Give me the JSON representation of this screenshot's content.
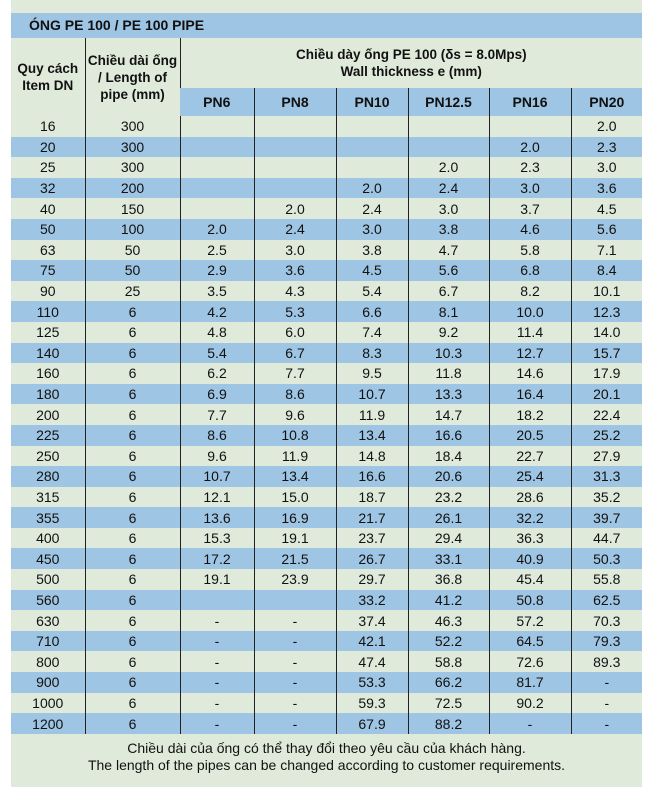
{
  "title": "ÓNG PE 100  / PE 100  PIPE",
  "headers": {
    "item_dn": "Quy cách Item DN",
    "length": "Chiều dài ống / Length of pipe (mm)",
    "thickness_vi": "Chiều dày ống PE 100 (δs = 8.0Mps)",
    "thickness_en": "Wall thickness e (mm)",
    "pn": [
      "PN6",
      "PN8",
      "PN10",
      "PN12.5",
      "PN16",
      "PN20"
    ]
  },
  "rows": [
    [
      "16",
      "300",
      "",
      "",
      "",
      "",
      "",
      "2.0"
    ],
    [
      "20",
      "300",
      "",
      "",
      "",
      "",
      "2.0",
      "2.3"
    ],
    [
      "25",
      "300",
      "",
      "",
      "",
      "2.0",
      "2.3",
      "3.0"
    ],
    [
      "32",
      "200",
      "",
      "",
      "2.0",
      "2.4",
      "3.0",
      "3.6"
    ],
    [
      "40",
      "150",
      "",
      "2.0",
      "2.4",
      "3.0",
      "3.7",
      "4.5"
    ],
    [
      "50",
      "100",
      "2.0",
      "2.4",
      "3.0",
      "3.8",
      "4.6",
      "5.6"
    ],
    [
      "63",
      "50",
      "2.5",
      "3.0",
      "3.8",
      "4.7",
      "5.8",
      "7.1"
    ],
    [
      "75",
      "50",
      "2.9",
      "3.6",
      "4.5",
      "5.6",
      "6.8",
      "8.4"
    ],
    [
      "90",
      "25",
      "3.5",
      "4.3",
      "5.4",
      "6.7",
      "8.2",
      "10.1"
    ],
    [
      "110",
      "6",
      "4.2",
      "5.3",
      "6.6",
      "8.1",
      "10.0",
      "12.3"
    ],
    [
      "125",
      "6",
      "4.8",
      "6.0",
      "7.4",
      "9.2",
      "11.4",
      "14.0"
    ],
    [
      "140",
      "6",
      "5.4",
      "6.7",
      "8.3",
      "10.3",
      "12.7",
      "15.7"
    ],
    [
      "160",
      "6",
      "6.2",
      "7.7",
      "9.5",
      "11.8",
      "14.6",
      "17.9"
    ],
    [
      "180",
      "6",
      "6.9",
      "8.6",
      "10.7",
      "13.3",
      "16.4",
      "20.1"
    ],
    [
      "200",
      "6",
      "7.7",
      "9.6",
      "11.9",
      "14.7",
      "18.2",
      "22.4"
    ],
    [
      "225",
      "6",
      "8.6",
      "10.8",
      "13.4",
      "16.6",
      "20.5",
      "25.2"
    ],
    [
      "250",
      "6",
      "9.6",
      "11.9",
      "14.8",
      "18.4",
      "22.7",
      "27.9"
    ],
    [
      "280",
      "6",
      "10.7",
      "13.4",
      "16.6",
      "20.6",
      "25.4",
      "31.3"
    ],
    [
      "315",
      "6",
      "12.1",
      "15.0",
      "18.7",
      "23.2",
      "28.6",
      "35.2"
    ],
    [
      "355",
      "6",
      "13.6",
      "16.9",
      "21.7",
      "26.1",
      "32.2",
      "39.7"
    ],
    [
      "400",
      "6",
      "15.3",
      "19.1",
      "23.7",
      "29.4",
      "36.3",
      "44.7"
    ],
    [
      "450",
      "6",
      "17.2",
      "21.5",
      "26.7",
      "33.1",
      "40.9",
      "50.3"
    ],
    [
      "500",
      "6",
      "19.1",
      "23.9",
      "29.7",
      "36.8",
      "45.4",
      "55.8"
    ],
    [
      "560",
      "6",
      "",
      "",
      "33.2",
      "41.2",
      "50.8",
      "62.5"
    ],
    [
      "630",
      "6",
      "-",
      "-",
      "37.4",
      "46.3",
      "57.2",
      "70.3"
    ],
    [
      "710",
      "6",
      "-",
      "-",
      "42.1",
      "52.2",
      "64.5",
      "79.3"
    ],
    [
      "800",
      "6",
      "-",
      "-",
      "47.4",
      "58.8",
      "72.6",
      "89.3"
    ],
    [
      "900",
      "6",
      "-",
      "-",
      "53.3",
      "66.2",
      "81.7",
      "-"
    ],
    [
      "1000",
      "6",
      "-",
      "-",
      "59.3",
      "72.5",
      "90.2",
      "-"
    ],
    [
      "1200",
      "6",
      "-",
      "-",
      "67.9",
      "88.2",
      "-",
      "-"
    ]
  ],
  "footer": {
    "vi": "Chiều dài của ống có thể thay đổi theo yêu cầu của khách hàng.",
    "en": "The length of the pipes can be changed according to customer requirements."
  }
}
